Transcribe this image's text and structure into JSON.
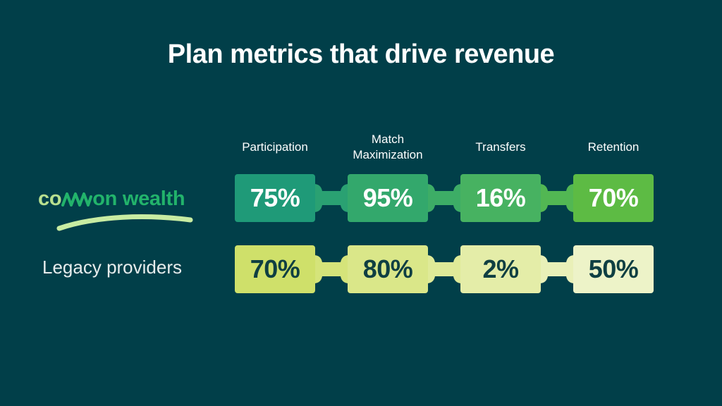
{
  "title": "Plan metrics that drive revenue",
  "chart_data": {
    "type": "table",
    "columns": [
      "Participation",
      "Match Maximization",
      "Transfers",
      "Retention"
    ],
    "columns_display": [
      [
        "Participation"
      ],
      [
        "Match",
        "Maximization"
      ],
      [
        "Transfers"
      ],
      [
        "Retention"
      ]
    ],
    "rows": [
      {
        "name": "common wealth",
        "logo": {
          "part1": "co",
          "part2": "on wealth",
          "icon": "common-wealth-logo-mm-wave"
        },
        "values": [
          75,
          95,
          16,
          70
        ],
        "labels": [
          "75%",
          "95%",
          "16%",
          "70%"
        ],
        "colors": [
          "#1f9a78",
          "#33a86c",
          "#47b261",
          "#5dbb44"
        ],
        "connector_colors": [
          "#2aa172",
          "#3dad66",
          "#52b753"
        ]
      },
      {
        "name": "Legacy providers",
        "values": [
          70,
          80,
          2,
          50
        ],
        "labels": [
          "70%",
          "80%",
          "2%",
          "50%"
        ],
        "colors": [
          "#cfe06a",
          "#dae789",
          "#e4eda8",
          "#edf3c8"
        ],
        "connector_colors": [
          "#d5e47a",
          "#dfea98",
          "#e9f0b8"
        ]
      }
    ]
  },
  "colors": {
    "background": "#013f49",
    "logo_light": "#b8e08f",
    "logo_dark": "#22b36b"
  }
}
